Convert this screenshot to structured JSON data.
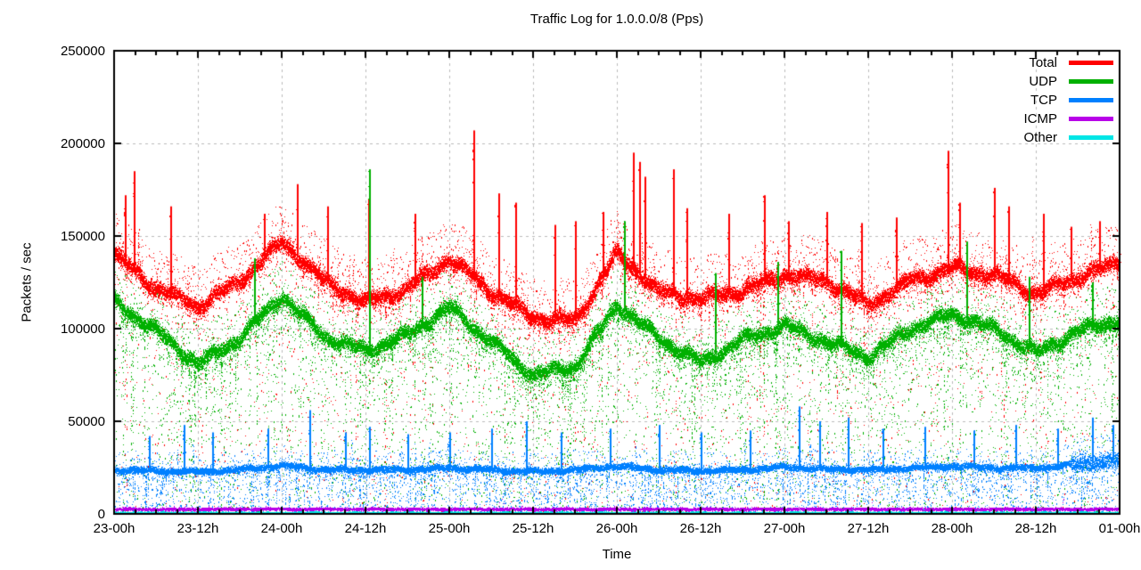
{
  "chart_data": {
    "type": "scatter",
    "title": "Traffic Log for 1.0.0.0/8 (Pps)",
    "xlabel": "Time",
    "ylabel": "Packets / sec",
    "ylim": [
      0,
      250000
    ],
    "xlim_hours": [
      0,
      144
    ],
    "grid": true,
    "grid_color": "#bbbbbb",
    "border_color": "#000000",
    "legend_position": "top-right-inside",
    "y_tick_values": [
      0,
      50000,
      100000,
      150000,
      200000,
      250000
    ],
    "y_tick_labels": [
      "0",
      "50000",
      "100000",
      "150000",
      "200000",
      "250000"
    ],
    "x_tick_hours": [
      0,
      12,
      24,
      36,
      48,
      60,
      72,
      84,
      96,
      108,
      120,
      132,
      144
    ],
    "x_tick_labels": [
      "23-00h",
      "23-12h",
      "24-00h",
      "24-12h",
      "25-00h",
      "25-12h",
      "26-00h",
      "26-12h",
      "27-00h",
      "27-12h",
      "28-00h",
      "28-12h",
      "01-00h"
    ],
    "x_minor_tick_step_hours": 3,
    "series": [
      {
        "name": "total",
        "label": "Total",
        "color": "#ff0000",
        "sample_hours": [
          0,
          6,
          12,
          18,
          24,
          30,
          36,
          42,
          48,
          54,
          60,
          66,
          72,
          78,
          84,
          90,
          96,
          102,
          108,
          114,
          120,
          126,
          132,
          138,
          144
        ],
        "band_center": [
          140000,
          122000,
          112000,
          126000,
          147000,
          126000,
          114000,
          122000,
          138000,
          120000,
          106000,
          104000,
          141000,
          120000,
          116000,
          121000,
          129000,
          126000,
          113000,
          126000,
          133000,
          129000,
          119000,
          128000,
          136000
        ],
        "band_halfwidth": 6000,
        "dots_per_col": 26,
        "wobble": 2500,
        "above_mean": 1.2,
        "above_range": 16000,
        "below_min": 3000,
        "below_mean": 2.5,
        "below_bias": 2.6,
        "streak_prob": 0.05,
        "streak_n": 15,
        "spike_prob": 0.05,
        "spike_add": 40000,
        "named_spikes": [
          {
            "h": 1.5,
            "top": 172000
          },
          {
            "h": 2.8,
            "top": 185000
          },
          {
            "h": 8,
            "top": 166000
          },
          {
            "h": 21.5,
            "top": 162000
          },
          {
            "h": 26.2,
            "top": 178000
          },
          {
            "h": 30.5,
            "top": 166000
          },
          {
            "h": 36.4,
            "top": 170000
          },
          {
            "h": 43,
            "top": 162000
          },
          {
            "h": 51.5,
            "top": 207000
          },
          {
            "h": 55,
            "top": 173000
          },
          {
            "h": 57.5,
            "top": 168000
          },
          {
            "h": 63,
            "top": 156000
          },
          {
            "h": 66,
            "top": 158000
          },
          {
            "h": 70,
            "top": 163000
          },
          {
            "h": 74.3,
            "top": 195000
          },
          {
            "h": 75.2,
            "top": 190000
          },
          {
            "h": 76,
            "top": 182000
          },
          {
            "h": 80,
            "top": 186000
          },
          {
            "h": 82,
            "top": 165000
          },
          {
            "h": 88,
            "top": 162000
          },
          {
            "h": 93,
            "top": 172000
          },
          {
            "h": 96.5,
            "top": 158000
          },
          {
            "h": 102,
            "top": 163000
          },
          {
            "h": 107,
            "top": 157000
          },
          {
            "h": 112,
            "top": 160000
          },
          {
            "h": 119.4,
            "top": 196000
          },
          {
            "h": 121,
            "top": 168000
          },
          {
            "h": 126,
            "top": 176000
          },
          {
            "h": 128,
            "top": 166000
          },
          {
            "h": 133,
            "top": 162000
          },
          {
            "h": 137,
            "top": 155000
          },
          {
            "h": 141,
            "top": 158000
          }
        ]
      },
      {
        "name": "udp",
        "label": "UDP",
        "color": "#00b000",
        "sample_hours": [
          0,
          6,
          12,
          18,
          24,
          30,
          36,
          42,
          48,
          54,
          60,
          66,
          72,
          78,
          84,
          90,
          96,
          102,
          108,
          114,
          120,
          126,
          132,
          138,
          144
        ],
        "band_center": [
          115000,
          99000,
          81000,
          95000,
          118000,
          96000,
          88000,
          97000,
          112000,
          93000,
          75000,
          80000,
          113000,
          95000,
          82000,
          94000,
          102000,
          93000,
          85000,
          100000,
          108000,
          100000,
          87000,
          99000,
          105000
        ],
        "band_halfwidth": 5500,
        "dots_per_col": 26,
        "wobble": 2500,
        "above_mean": 0.8,
        "above_range": 15000,
        "below_min": 3000,
        "below_mean": 5,
        "below_bias": 2.0,
        "streak_prob": 0.07,
        "streak_n": 20,
        "spike_prob": 0.02,
        "spike_add": 25000,
        "named_spikes": [
          {
            "h": 20,
            "top": 138000
          },
          {
            "h": 36.5,
            "top": 186000
          },
          {
            "h": 44,
            "top": 128000
          },
          {
            "h": 73,
            "top": 158000
          },
          {
            "h": 86,
            "top": 130000
          },
          {
            "h": 95,
            "top": 136000
          },
          {
            "h": 104,
            "top": 142000
          },
          {
            "h": 122,
            "top": 147000
          },
          {
            "h": 131,
            "top": 128000
          },
          {
            "h": 140,
            "top": 125000
          }
        ]
      },
      {
        "name": "tcp",
        "label": "TCP",
        "color": "#0080ff",
        "sample_hours": [
          0,
          6,
          12,
          18,
          24,
          30,
          36,
          42,
          48,
          54,
          60,
          66,
          72,
          78,
          84,
          90,
          96,
          102,
          108,
          114,
          120,
          126,
          132,
          138,
          144
        ],
        "band_center": [
          24000,
          23500,
          23000,
          24000,
          26500,
          24000,
          24000,
          24000,
          25000,
          24000,
          23000,
          24000,
          26000,
          24000,
          23500,
          24000,
          25500,
          24500,
          24000,
          25000,
          26000,
          25000,
          25000,
          27000,
          29000
        ],
        "band_halfwidth": 2500,
        "dots_per_col": 18,
        "wobble": 800,
        "above_mean": 0.5,
        "above_range": 8000,
        "below_min": 500,
        "below_mean": 3,
        "below_bias": 1.3,
        "streak_prob": 0.12,
        "streak_n": 12,
        "spike_prob": 0.04,
        "spike_add": 15000,
        "dense_regions": [
          {
            "from_h": 137,
            "to_h": 144,
            "halfwidth": 7000
          }
        ],
        "named_spikes": [
          {
            "h": 5,
            "top": 42000
          },
          {
            "h": 10,
            "top": 48000
          },
          {
            "h": 14,
            "top": 44000
          },
          {
            "h": 22,
            "top": 46000
          },
          {
            "h": 28,
            "top": 56000
          },
          {
            "h": 33,
            "top": 44000
          },
          {
            "h": 36.5,
            "top": 47000
          },
          {
            "h": 42,
            "top": 43000
          },
          {
            "h": 48,
            "top": 44000
          },
          {
            "h": 54,
            "top": 46000
          },
          {
            "h": 59,
            "top": 50000
          },
          {
            "h": 64,
            "top": 44000
          },
          {
            "h": 71,
            "top": 46000
          },
          {
            "h": 78,
            "top": 48000
          },
          {
            "h": 84,
            "top": 44000
          },
          {
            "h": 91,
            "top": 45000
          },
          {
            "h": 98,
            "top": 58000
          },
          {
            "h": 101,
            "top": 50000
          },
          {
            "h": 105,
            "top": 52000
          },
          {
            "h": 110,
            "top": 46000
          },
          {
            "h": 116,
            "top": 47000
          },
          {
            "h": 123,
            "top": 45000
          },
          {
            "h": 129,
            "top": 48000
          },
          {
            "h": 135,
            "top": 46000
          },
          {
            "h": 140,
            "top": 52000
          },
          {
            "h": 143,
            "top": 48000
          }
        ]
      },
      {
        "name": "icmp",
        "label": "ICMP",
        "color": "#b800e8",
        "sample_hours": [
          0,
          144
        ],
        "band_center": [
          2800,
          2800
        ],
        "band_halfwidth": 900,
        "dots_per_col": 12,
        "wobble": 200,
        "above_mean": 0.05,
        "above_range": 4000,
        "below_min": 500,
        "below_mean": 0.2,
        "below_bias": 1,
        "streak_prob": 0.01,
        "streak_n": 3,
        "spike_prob": 0.008,
        "spike_add": 3000,
        "named_spikes": []
      },
      {
        "name": "other",
        "label": "Other",
        "color": "#00e6e6",
        "sample_hours": [
          0,
          144
        ],
        "band_center": [
          900,
          900
        ],
        "band_halfwidth": 450,
        "dots_per_col": 12,
        "wobble": 120,
        "above_mean": 0.03,
        "above_range": 2000,
        "below_min": 50,
        "below_mean": 0.2,
        "below_bias": 1,
        "streak_prob": 0.01,
        "streak_n": 3,
        "spike_prob": 0.005,
        "spike_add": 1500,
        "named_spikes": []
      }
    ]
  }
}
